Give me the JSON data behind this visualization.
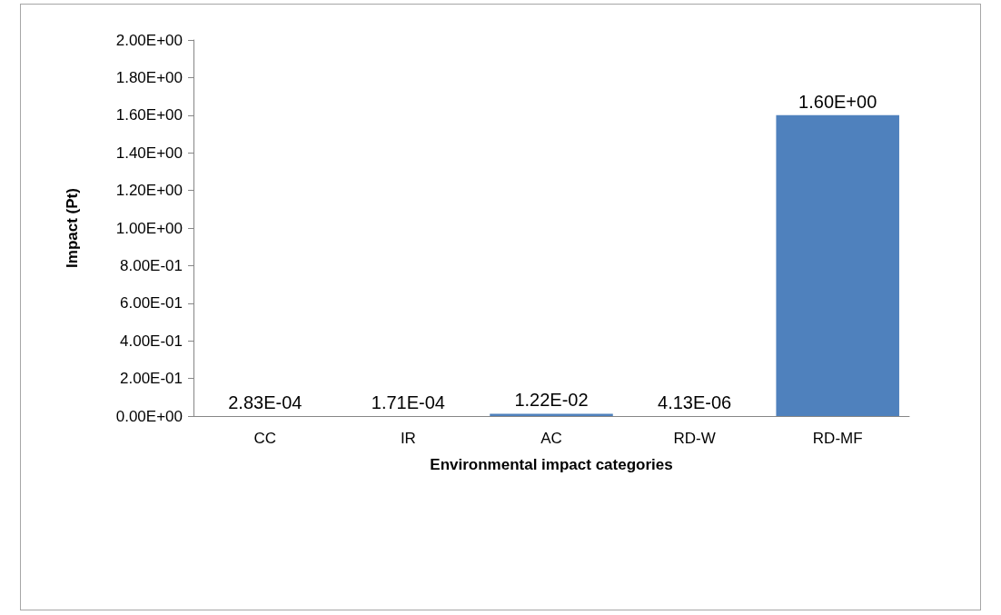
{
  "chart_data": {
    "type": "bar",
    "xlabel": "Environmental impact categories",
    "ylabel": "Impact (Pt)",
    "categories": [
      "CC",
      "IR",
      "AC",
      "RD-W",
      "RD-MF"
    ],
    "values": [
      0.000283,
      0.000171,
      0.0122,
      4.13e-06,
      1.6
    ],
    "value_labels": [
      "2.83E-04",
      "1.71E-04",
      "1.22E-02",
      "4.13E-06",
      "1.60E+00"
    ],
    "color": "#4f81bd",
    "ylim": [
      0,
      2
    ],
    "yticks": [
      {
        "value": 0,
        "label": "0.00E+00"
      },
      {
        "value": 0.2,
        "label": "2.00E-01"
      },
      {
        "value": 0.4,
        "label": "4.00E-01"
      },
      {
        "value": 0.6,
        "label": "6.00E-01"
      },
      {
        "value": 0.8,
        "label": "8.00E-01"
      },
      {
        "value": 1,
        "label": "1.00E+00"
      },
      {
        "value": 1.2,
        "label": "1.20E+00"
      },
      {
        "value": 1.4,
        "label": "1.40E+00"
      },
      {
        "value": 1.6,
        "label": "1.60E+00"
      },
      {
        "value": 1.8,
        "label": "1.80E+00"
      },
      {
        "value": 2,
        "label": "2.00E+00"
      }
    ],
    "grid": false
  }
}
